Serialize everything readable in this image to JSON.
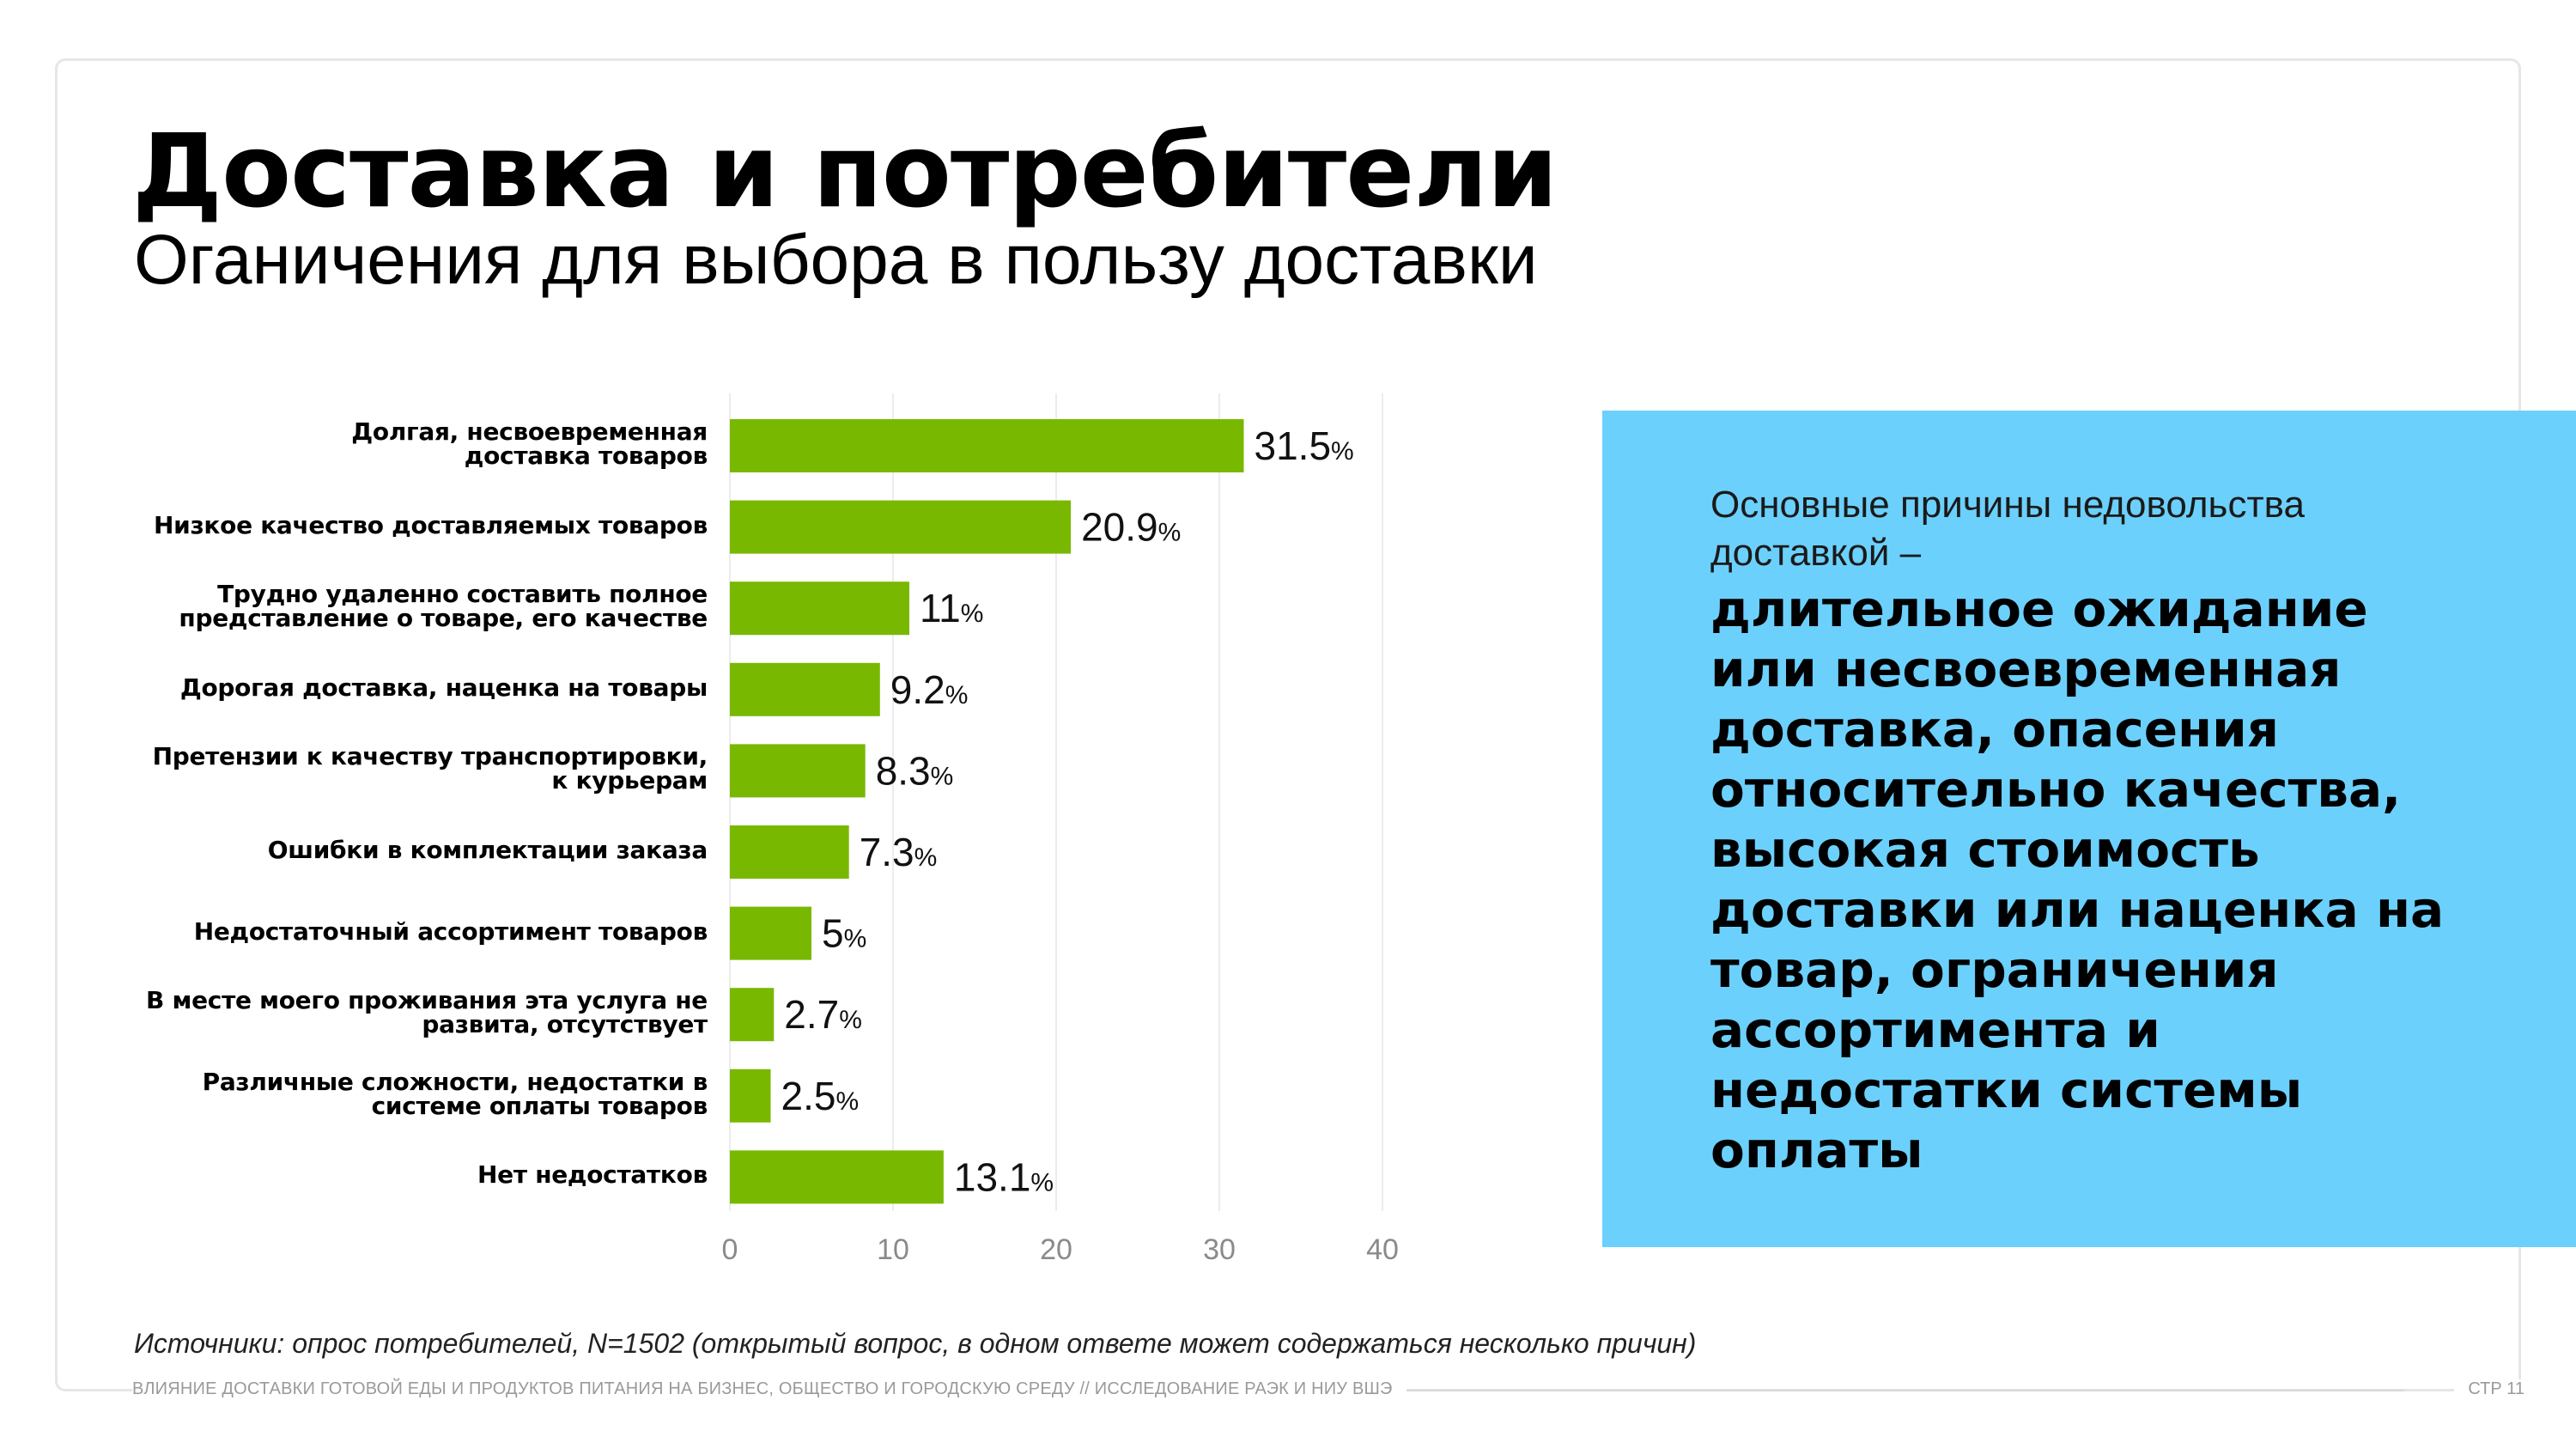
{
  "title": "Доставка и потребители",
  "subtitle": "Оганичения для выбора в пользу доставки",
  "callout": {
    "lead": "Основные причины недовольства доставкой –",
    "main": "длительное ожидание или несвоевременная доставка, опасения относительно качества, высокая стоимость доставки или наценка на товар, ограничения ассортимента и недостатки системы оплаты"
  },
  "source": "Источники: опрос потребителей, N=1502 (открытый вопрос, в одном ответе может содержаться несколько причин)",
  "footer": {
    "text": "ВЛИЯНИЕ ДОСТАВКИ ГОТОВОЙ ЕДЫ И ПРОДУКТОВ ПИТАНИЯ НА БИЗНЕС, ОБЩЕСТВО И ГОРОДСКУЮ СРЕДУ // ИССЛЕДОВАНИЕ РАЭК И НИУ ВШЭ",
    "page": "СТР 11"
  },
  "colors": {
    "bar": "#79b800",
    "callout_bg": "#6cd0fc",
    "grid": "#ececec",
    "tick": "#8a8a8a"
  },
  "chart_data": {
    "type": "bar",
    "orientation": "horizontal",
    "categories": [
      "Долгая, несвоевременная доставка товаров",
      "Низкое качество доставляемых товаров",
      "Трудно удаленно составить полное представление о товаре, его качестве",
      "Дорогая доставка, наценка на товары",
      "Претензии к качеству транспортировки, к курьерам",
      "Ошибки в комплектации заказа",
      "Недостаточный ассортимент товаров",
      "В месте моего проживания эта услуга не развита, отсутствует",
      "Различные сложности, недостатки в системе оплаты товаров",
      "Нет недостатков"
    ],
    "label_lines": [
      [
        "Долгая, несвоевременная",
        "доставка товаров"
      ],
      [
        "Низкое качество доставляемых товаров"
      ],
      [
        "Трудно удаленно составить полное",
        "представление о товаре, его качестве"
      ],
      [
        "Дорогая доставка, наценка на товары"
      ],
      [
        "Претензии к качеству транспортировки,",
        "к курьерам"
      ],
      [
        "Ошибки в комплектации заказа"
      ],
      [
        "Недостаточный ассортимент товаров"
      ],
      [
        "В месте моего проживания эта услуга не",
        "развита, отсутствует"
      ],
      [
        "Различные сложности, недостатки в",
        "системе оплаты товаров"
      ],
      [
        "Нет недостатков"
      ]
    ],
    "values": [
      31.5,
      20.9,
      11,
      9.2,
      8.3,
      7.3,
      5,
      2.7,
      2.5,
      13.1
    ],
    "value_labels": [
      "31.5",
      "20.9",
      "11",
      "9.2",
      "8.3",
      "7.3",
      "5",
      "2.7",
      "2.5",
      "13.1"
    ],
    "unit": "%",
    "xlim": [
      0,
      40
    ],
    "xticks": [
      0,
      10,
      20,
      30,
      40
    ],
    "title": "",
    "xlabel": "",
    "ylabel": "",
    "grid": true
  }
}
